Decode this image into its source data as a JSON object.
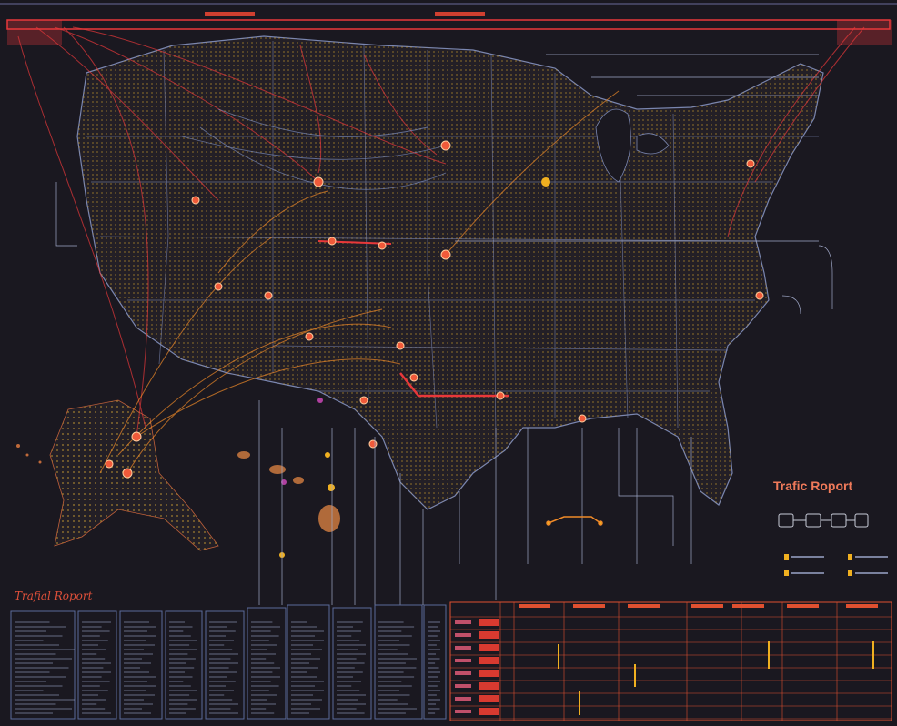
{
  "report": {
    "title": "Trafic Roport",
    "subtitle": "Trafial Roport"
  },
  "colors": {
    "background": "#1a1820",
    "land_dots": "#c89a2a",
    "route_red": "#e8383a",
    "route_orange": "#f08a28",
    "route_blue": "#8aa0d8",
    "panel_border": "#5a6a9a",
    "grid_line": "#e05030",
    "accent_yellow": "#f0b020"
  },
  "icons": {
    "hub": "circle-node-icon",
    "network": "network-flow-icon"
  }
}
